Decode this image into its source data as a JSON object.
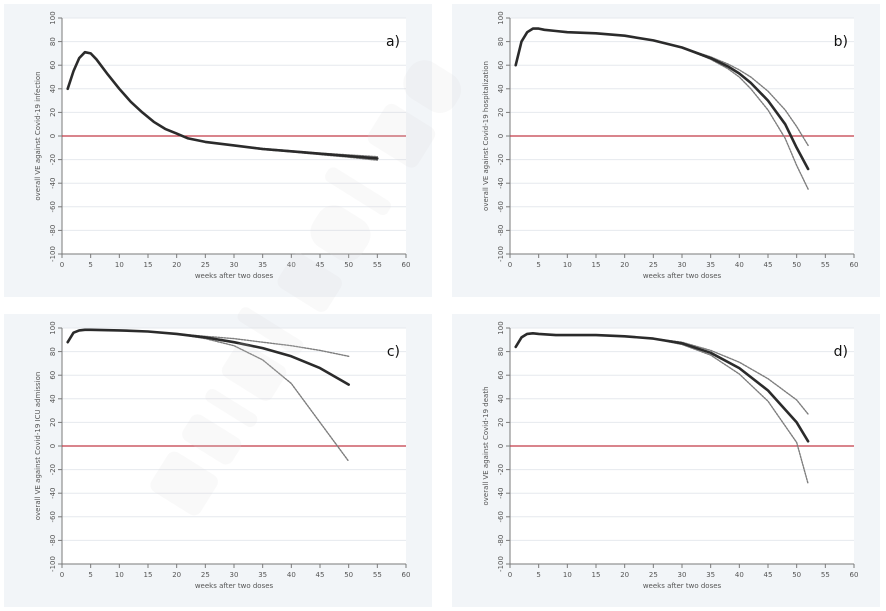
{
  "chart_data": [
    {
      "type": "line",
      "panel_label": "a)",
      "xlabel": "weeks after two doses",
      "ylabel": "overall VE against Covid-19 infection",
      "xlim": [
        0,
        60
      ],
      "ylim": [
        -100,
        100
      ],
      "xticks": [
        0,
        5,
        10,
        15,
        20,
        25,
        30,
        35,
        40,
        45,
        50,
        55,
        60
      ],
      "yticks": [
        -100,
        -80,
        -60,
        -40,
        -20,
        0,
        20,
        40,
        60,
        80,
        100
      ],
      "grid": true,
      "reference_line_y": 0,
      "series": [
        {
          "role": "estimate",
          "x": [
            1,
            2,
            3,
            4,
            5,
            6,
            8,
            10,
            12,
            14,
            16,
            18,
            20,
            22,
            25,
            30,
            35,
            40,
            45,
            50,
            55
          ],
          "y": [
            40,
            55,
            66,
            71,
            70,
            65,
            52,
            40,
            29,
            20,
            12,
            6,
            2,
            -2,
            -5,
            -8,
            -11,
            -13,
            -15,
            -17,
            -19
          ]
        },
        {
          "role": "upper",
          "x": [
            1,
            2,
            3,
            4,
            5,
            6,
            8,
            10,
            12,
            14,
            16,
            18,
            20,
            22,
            25,
            30,
            35,
            40,
            45,
            50,
            55
          ],
          "y": [
            40,
            55,
            66,
            71,
            70,
            65,
            52,
            40,
            29,
            20,
            12,
            6,
            2,
            -2,
            -5,
            -8,
            -10.5,
            -12.5,
            -14.5,
            -16,
            -17.5
          ]
        },
        {
          "role": "lower",
          "x": [
            1,
            2,
            3,
            4,
            5,
            6,
            8,
            10,
            12,
            14,
            16,
            18,
            20,
            22,
            25,
            30,
            35,
            40,
            45,
            50,
            55
          ],
          "y": [
            40,
            55,
            66,
            71,
            70,
            65,
            52,
            40,
            29,
            20,
            12,
            6,
            2,
            -2,
            -5,
            -8,
            -11.5,
            -13.5,
            -15.8,
            -18,
            -20.5
          ]
        }
      ]
    },
    {
      "type": "line",
      "panel_label": "b)",
      "xlabel": "weeks after two doses",
      "ylabel": "overall VE against Covid-19 hospitalization",
      "xlim": [
        0,
        60
      ],
      "ylim": [
        -100,
        100
      ],
      "xticks": [
        0,
        5,
        10,
        15,
        20,
        25,
        30,
        35,
        40,
        45,
        50,
        55,
        60
      ],
      "yticks": [
        -100,
        -80,
        -60,
        -40,
        -20,
        0,
        20,
        40,
        60,
        80,
        100
      ],
      "grid": true,
      "reference_line_y": 0,
      "series": [
        {
          "role": "estimate",
          "x": [
            1,
            2,
            3,
            4,
            5,
            6,
            8,
            10,
            15,
            20,
            25,
            30,
            35,
            38,
            40,
            42,
            45,
            48,
            50,
            52
          ],
          "y": [
            60,
            80,
            88,
            91,
            91,
            90,
            89,
            88,
            87,
            85,
            81,
            75,
            66,
            59,
            53,
            45,
            30,
            10,
            -10,
            -28
          ]
        },
        {
          "role": "upper",
          "x": [
            1,
            2,
            3,
            4,
            5,
            6,
            8,
            10,
            15,
            20,
            25,
            30,
            35,
            38,
            40,
            42,
            45,
            48,
            50,
            52
          ],
          "y": [
            60,
            80,
            88,
            91,
            91,
            90,
            89,
            88,
            87,
            85,
            81,
            75,
            67,
            61,
            56,
            50,
            38,
            22,
            8,
            -8
          ]
        },
        {
          "role": "lower",
          "x": [
            1,
            2,
            3,
            4,
            5,
            6,
            8,
            10,
            15,
            20,
            25,
            30,
            35,
            38,
            40,
            42,
            45,
            48,
            50,
            52
          ],
          "y": [
            60,
            80,
            88,
            91,
            91,
            90,
            89,
            88,
            87,
            85,
            81,
            75,
            65,
            57,
            50,
            40,
            22,
            -2,
            -25,
            -45
          ]
        }
      ]
    },
    {
      "type": "line",
      "panel_label": "c)",
      "xlabel": "weeks after two doses",
      "ylabel": "overall VE against Covid-19 ICU admission",
      "xlim": [
        0,
        60
      ],
      "ylim": [
        -100,
        100
      ],
      "xticks": [
        0,
        5,
        10,
        15,
        20,
        25,
        30,
        35,
        40,
        45,
        50,
        55,
        60
      ],
      "yticks": [
        -100,
        -80,
        -60,
        -40,
        -20,
        0,
        20,
        40,
        60,
        80,
        100
      ],
      "grid": true,
      "reference_line_y": 0,
      "series": [
        {
          "role": "estimate",
          "x": [
            1,
            2,
            3,
            4,
            5,
            10,
            15,
            20,
            25,
            30,
            35,
            40,
            45,
            50
          ],
          "y": [
            88,
            96,
            98,
            98.5,
            98.5,
            98,
            97,
            95,
            92,
            88,
            83,
            76,
            66,
            52
          ]
        },
        {
          "role": "upper",
          "x": [
            1,
            2,
            3,
            4,
            5,
            10,
            15,
            20,
            25,
            30,
            35,
            40,
            45,
            50
          ],
          "y": [
            88,
            96,
            98,
            98.5,
            98.5,
            98,
            97,
            95,
            93,
            91,
            88,
            85,
            81,
            76
          ]
        },
        {
          "role": "lower",
          "x": [
            1,
            2,
            3,
            4,
            5,
            10,
            15,
            20,
            25,
            30,
            35,
            40,
            45,
            50
          ],
          "y": [
            88,
            96,
            98,
            98.5,
            98.5,
            98,
            97,
            95,
            91,
            85,
            73,
            53,
            20,
            -13
          ]
        }
      ]
    },
    {
      "type": "line",
      "panel_label": "d)",
      "xlabel": "weeks after two doses",
      "ylabel": "overall VE against Covid-19 death",
      "xlim": [
        0,
        60
      ],
      "ylim": [
        -100,
        100
      ],
      "xticks": [
        0,
        5,
        10,
        15,
        20,
        25,
        30,
        35,
        40,
        45,
        50,
        55,
        60
      ],
      "yticks": [
        -100,
        -80,
        -60,
        -40,
        -20,
        0,
        20,
        40,
        60,
        80,
        100
      ],
      "grid": true,
      "reference_line_y": 0,
      "series": [
        {
          "role": "estimate",
          "x": [
            1,
            2,
            3,
            4,
            5,
            8,
            10,
            15,
            20,
            25,
            30,
            35,
            40,
            45,
            50,
            52
          ],
          "y": [
            84,
            92,
            95,
            95.5,
            95,
            94,
            94,
            94,
            93,
            91,
            87,
            79,
            66,
            47,
            20,
            4
          ]
        },
        {
          "role": "upper",
          "x": [
            1,
            2,
            3,
            4,
            5,
            8,
            10,
            15,
            20,
            25,
            30,
            35,
            40,
            45,
            50,
            52
          ],
          "y": [
            84,
            92,
            95,
            95.5,
            95,
            94,
            94,
            94,
            93,
            91,
            88,
            81,
            71,
            57,
            39,
            27
          ]
        },
        {
          "role": "lower",
          "x": [
            1,
            2,
            3,
            4,
            5,
            8,
            10,
            15,
            20,
            25,
            30,
            35,
            40,
            45,
            50,
            52
          ],
          "y": [
            84,
            92,
            95,
            95.5,
            95,
            94,
            94,
            94,
            93,
            91,
            86,
            77,
            61,
            38,
            3,
            -32
          ]
        }
      ]
    }
  ]
}
